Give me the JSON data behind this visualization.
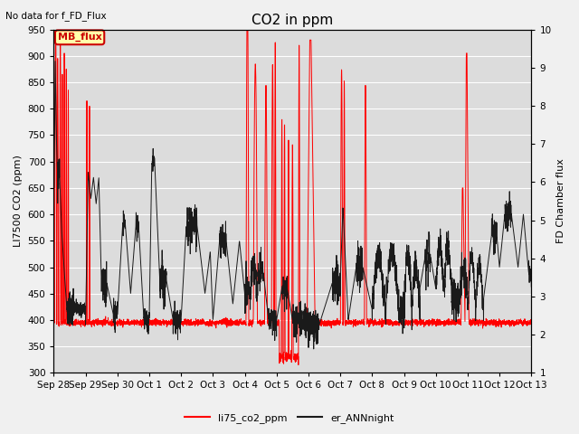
{
  "title": "CO2 in ppm",
  "top_left_text": "No data for f_FD_Flux",
  "ylabel_left": "LI7500 CO2 (ppm)",
  "ylabel_right": "FD Chamber flux",
  "ylim_left": [
    300,
    950
  ],
  "ylim_right": [
    1.0,
    10.0
  ],
  "xlim": [
    0,
    360
  ],
  "plot_bg_color": "#dcdcdc",
  "fig_bg_color": "#f0f0f0",
  "line_red_color": "#ff0000",
  "line_black_color": "#1a1a1a",
  "legend_items": [
    "li75_co2_ppm",
    "er_ANNnight"
  ],
  "legend_colors": [
    "#ff0000",
    "#1a1a1a"
  ],
  "mb_flux_box_color": "#ffffaa",
  "mb_flux_border_color": "#cc0000",
  "mb_flux_text_color": "#cc0000",
  "x_tick_labels": [
    "Sep 28",
    "Sep 29",
    "Sep 30",
    "Oct 1",
    "Oct 2",
    "Oct 3",
    "Oct 4",
    "Oct 5",
    "Oct 6",
    "Oct 7",
    "Oct 8",
    "Oct 9",
    "Oct 10",
    "Oct 11",
    "Oct 12",
    "Oct 13"
  ],
  "x_tick_positions": [
    0,
    24,
    48,
    72,
    96,
    120,
    144,
    168,
    192,
    216,
    240,
    264,
    288,
    312,
    336,
    360
  ],
  "y_left_ticks": [
    300,
    350,
    400,
    450,
    500,
    550,
    600,
    650,
    700,
    750,
    800,
    850,
    900,
    950
  ],
  "y_right_ticks": [
    1.0,
    2.0,
    3.0,
    4.0,
    5.0,
    6.0,
    7.0,
    8.0,
    9.0,
    10.0
  ],
  "grid_color": "#ffffff",
  "title_fontsize": 11,
  "axis_label_fontsize": 8,
  "tick_fontsize": 7.5
}
